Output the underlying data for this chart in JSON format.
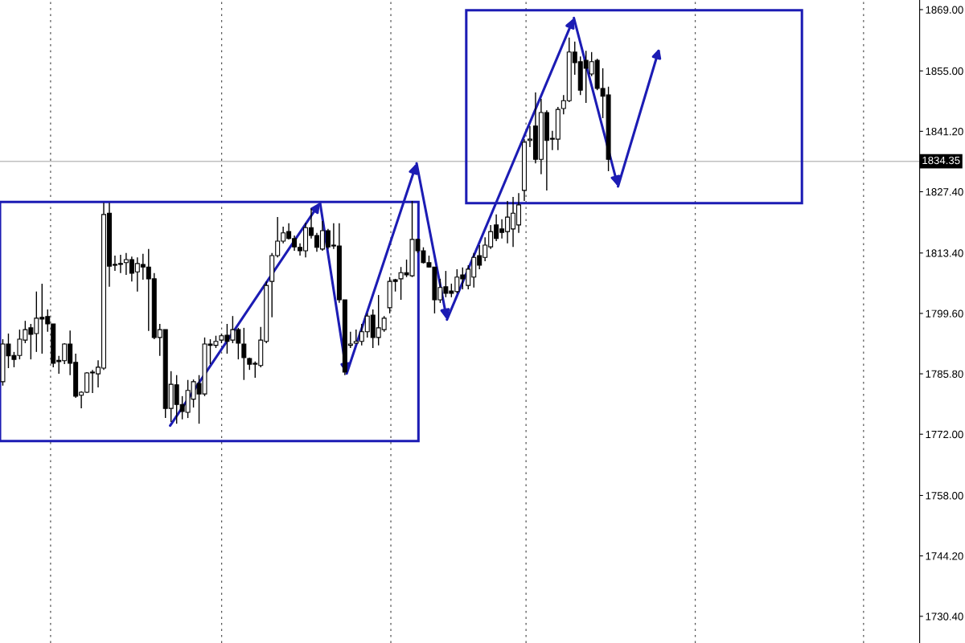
{
  "chart_data": {
    "type": "candlestick",
    "categories": [
      null,
      null,
      null,
      null,
      null,
      null,
      null,
      null,
      null,
      null,
      null,
      null,
      null,
      null,
      null,
      null,
      null,
      null,
      null,
      null,
      null,
      null,
      null,
      null,
      null,
      null,
      null,
      null,
      null,
      null,
      null,
      null,
      null,
      null,
      null,
      null,
      null,
      null,
      null,
      null,
      null,
      null,
      null,
      null,
      null,
      null,
      null,
      null,
      null,
      null,
      null,
      null,
      null,
      null,
      null,
      null,
      null,
      null,
      null,
      null,
      null,
      null,
      null,
      null,
      null,
      null,
      null,
      null,
      null,
      null,
      null,
      null,
      null,
      null,
      null,
      null,
      null,
      null,
      null,
      null,
      null,
      null,
      null,
      null,
      null,
      null,
      null,
      null,
      null,
      null,
      null,
      null,
      null,
      null,
      null,
      null,
      null,
      null,
      null,
      null,
      null,
      null,
      null,
      null,
      null,
      null,
      null,
      null,
      null,
      null,
      null,
      null,
      null,
      null,
      null,
      null,
      null,
      null,
      null,
      null,
      null,
      null,
      null,
      null,
      null,
      null,
      null,
      null,
      null,
      null,
      null,
      null,
      null,
      null,
      null,
      null,
      null,
      null,
      null,
      null,
      null,
      null,
      null,
      null,
      null,
      null,
      null,
      null,
      null,
      null,
      null,
      null,
      null,
      null,
      null,
      null,
      null,
      null,
      null,
      null,
      null,
      null,
      null,
      null
    ],
    "ohlc": [
      [
        1784.0,
        1793.7,
        1783.1,
        1792.6
      ],
      [
        1792.6,
        1795.0,
        1787.1,
        1789.9
      ],
      [
        1790.0,
        1790.8,
        1787.3,
        1789.1
      ],
      [
        1790.0,
        1795.9,
        1789.1,
        1793.7
      ],
      [
        1793.5,
        1797.9,
        1792.8,
        1795.9
      ],
      [
        1796.3,
        1797.2,
        1789.1,
        1794.8
      ],
      [
        1795.0,
        1804.6,
        1790.8,
        1798.5
      ],
      [
        1798.7,
        1806.4,
        1790.4,
        1798.3
      ],
      [
        1798.9,
        1800.5,
        1795.4,
        1797.2
      ],
      [
        1797.2,
        1797.2,
        1787.3,
        1788.2
      ],
      [
        1788.9,
        1789.9,
        1785.8,
        1788.6
      ],
      [
        1788.8,
        1792.8,
        1788.0,
        1792.6
      ],
      [
        1792.6,
        1795.7,
        1785.5,
        1788.2
      ],
      [
        1788.4,
        1790.4,
        1780.3,
        1780.7
      ],
      [
        1780.9,
        1781.8,
        1777.9,
        1781.6
      ],
      [
        1781.6,
        1786.2,
        1781.4,
        1786.0
      ],
      [
        1786.0,
        1786.7,
        1781.4,
        1786.2
      ],
      [
        1785.8,
        1788.9,
        1782.7,
        1787.3
      ],
      [
        1787.1,
        1824.9,
        1786.7,
        1822.2
      ],
      [
        1822.5,
        1824.9,
        1805.7,
        1810.4
      ],
      [
        1810.8,
        1812.8,
        1809.3,
        1810.6
      ],
      [
        1811.0,
        1813.0,
        1808.8,
        1810.8
      ],
      [
        1811.2,
        1813.4,
        1808.4,
        1811.9
      ],
      [
        1811.9,
        1812.6,
        1806.9,
        1808.8
      ],
      [
        1809.1,
        1812.4,
        1804.6,
        1811.0
      ],
      [
        1810.8,
        1813.2,
        1807.3,
        1810.2
      ],
      [
        1810.2,
        1814.3,
        1795.6,
        1807.5
      ],
      [
        1807.5,
        1808.8,
        1793.7,
        1794.1
      ],
      [
        1794.1,
        1797.2,
        1789.9,
        1795.9
      ],
      [
        1795.9,
        1795.9,
        1775.7,
        1777.9
      ],
      [
        1777.9,
        1786.4,
        1774.8,
        1783.4
      ],
      [
        1783.3,
        1785.5,
        1774.4,
        1778.8
      ],
      [
        1778.8,
        1780.7,
        1775.4,
        1777.2
      ],
      [
        1777.0,
        1784.4,
        1775.7,
        1782.0
      ],
      [
        1780.0,
        1784.5,
        1778.1,
        1784.0
      ],
      [
        1783.6,
        1785.5,
        1774.4,
        1781.2
      ],
      [
        1781.2,
        1794.1,
        1780.7,
        1792.6
      ],
      [
        1792.6,
        1793.7,
        1788.0,
        1792.3
      ],
      [
        1792.3,
        1794.5,
        1791.7,
        1793.2
      ],
      [
        1793.5,
        1795.0,
        1792.8,
        1794.5
      ],
      [
        1794.6,
        1797.2,
        1790.4,
        1793.2
      ],
      [
        1793.5,
        1799.0,
        1792.8,
        1795.9
      ],
      [
        1795.9,
        1796.3,
        1789.1,
        1792.8
      ],
      [
        1792.6,
        1796.3,
        1784.4,
        1789.5
      ],
      [
        1789.3,
        1789.5,
        1786.7,
        1788.0
      ],
      [
        1788.2,
        1788.6,
        1784.9,
        1788.0
      ],
      [
        1787.7,
        1796.5,
        1787.3,
        1793.5
      ],
      [
        1793.2,
        1806.9,
        1792.8,
        1806.0
      ],
      [
        1806.9,
        1813.4,
        1798.7,
        1812.8
      ],
      [
        1812.8,
        1821.6,
        1812.4,
        1816.1
      ],
      [
        1816.1,
        1819.4,
        1815.6,
        1818.0
      ],
      [
        1818.3,
        1820.2,
        1816.5,
        1816.7
      ],
      [
        1816.7,
        1817.4,
        1813.9,
        1814.8
      ],
      [
        1814.7,
        1815.6,
        1812.8,
        1813.9
      ],
      [
        1813.9,
        1820.3,
        1812.4,
        1819.2
      ],
      [
        1819.2,
        1823.5,
        1816.7,
        1817.4
      ],
      [
        1817.4,
        1818.0,
        1813.7,
        1814.7
      ],
      [
        1814.3,
        1820.7,
        1813.9,
        1818.5
      ],
      [
        1818.5,
        1818.9,
        1814.3,
        1814.8
      ],
      [
        1815.2,
        1820.2,
        1814.3,
        1815.0
      ],
      [
        1815.0,
        1820.2,
        1802.0,
        1802.7
      ],
      [
        1802.7,
        1802.7,
        1785.5,
        1786.2
      ],
      [
        1792.3,
        1795.4,
        1791.7,
        1792.6
      ],
      [
        1792.8,
        1795.9,
        1792.6,
        1793.2
      ],
      [
        1793.2,
        1797.2,
        1792.3,
        1795.4
      ],
      [
        1795.4,
        1799.6,
        1794.1,
        1799.0
      ],
      [
        1799.2,
        1800.5,
        1791.7,
        1794.1
      ],
      [
        1794.1,
        1803.8,
        1792.3,
        1796.3
      ],
      [
        1795.9,
        1799.0,
        1795.4,
        1798.5
      ],
      [
        1800.9,
        1807.9,
        1799.6,
        1806.9
      ],
      [
        1807.3,
        1807.5,
        1804.6,
        1806.9
      ],
      [
        1807.5,
        1810.2,
        1802.7,
        1808.9
      ],
      [
        1808.9,
        1811.9,
        1807.9,
        1808.4
      ],
      [
        1808.2,
        1825.3,
        1807.9,
        1816.5
      ],
      [
        1816.5,
        1816.7,
        1813.4,
        1813.9
      ],
      [
        1813.9,
        1814.7,
        1811.0,
        1811.2
      ],
      [
        1811.2,
        1812.8,
        1810.1,
        1810.2
      ],
      [
        1810.2,
        1810.2,
        1799.6,
        1802.7
      ],
      [
        1802.7,
        1807.5,
        1802.0,
        1805.5
      ],
      [
        1805.7,
        1809.3,
        1803.3,
        1804.2
      ],
      [
        1804.7,
        1806.4,
        1803.3,
        1804.2
      ],
      [
        1804.6,
        1809.7,
        1804.2,
        1807.9
      ],
      [
        1808.4,
        1810.1,
        1805.1,
        1807.5
      ],
      [
        1806.0,
        1810.6,
        1805.1,
        1809.7
      ],
      [
        1807.9,
        1813.4,
        1805.5,
        1812.4
      ],
      [
        1812.8,
        1815.2,
        1809.7,
        1810.6
      ],
      [
        1812.4,
        1817.0,
        1811.5,
        1815.2
      ],
      [
        1814.8,
        1819.8,
        1814.3,
        1818.3
      ],
      [
        1819.8,
        1822.2,
        1816.1,
        1816.7
      ],
      [
        1818.9,
        1821.1,
        1816.7,
        1818.1
      ],
      [
        1818.3,
        1825.3,
        1815.6,
        1821.6
      ],
      [
        1818.9,
        1826.2,
        1814.8,
        1822.5
      ],
      [
        1819.8,
        1827.1,
        1818.0,
        1824.4
      ],
      [
        1827.7,
        1839.4,
        1825.3,
        1838.7
      ],
      [
        1839.1,
        1842.4,
        1837.6,
        1839.4
      ],
      [
        1842.4,
        1850.1,
        1833.9,
        1834.8
      ],
      [
        1834.8,
        1848.6,
        1831.4,
        1845.5
      ],
      [
        1845.5,
        1846.0,
        1827.7,
        1839.1
      ],
      [
        1839.6,
        1841.3,
        1836.9,
        1839.4
      ],
      [
        1839.4,
        1846.8,
        1836.9,
        1846.2
      ],
      [
        1846.4,
        1849.5,
        1845.1,
        1848.2
      ],
      [
        1848.2,
        1862.6,
        1847.9,
        1859.3
      ],
      [
        1859.3,
        1861.7,
        1854.1,
        1856.9
      ],
      [
        1857.1,
        1858.3,
        1849.5,
        1850.6
      ],
      [
        1857.4,
        1859.6,
        1847.7,
        1855.6
      ],
      [
        1854.3,
        1859.3,
        1853.8,
        1857.1
      ],
      [
        1857.4,
        1857.8,
        1850.6,
        1851.0
      ],
      [
        1851.0,
        1855.6,
        1844.2,
        1849.2
      ],
      [
        1849.5,
        1851.4,
        1832.1,
        1834.8
      ],
      null,
      null,
      null,
      null,
      null,
      null,
      null,
      null,
      null,
      null,
      null,
      null,
      null,
      null,
      null,
      null,
      null,
      null,
      null,
      null,
      null,
      null,
      null,
      null,
      null,
      null,
      null,
      null,
      null,
      null,
      null,
      null,
      null,
      null,
      null,
      null,
      null,
      null,
      null,
      null,
      null,
      null,
      null,
      null,
      null,
      null,
      null,
      null,
      null,
      null,
      null,
      null,
      null,
      null,
      null
    ],
    "ref_lines": [
      {
        "axis": "y",
        "value": 1834.35,
        "label": "1834.35",
        "color": "#c0c0c0"
      }
    ],
    "ylim": [
      1724.3,
      1871.2
    ],
    "yticks": [
      {
        "value": 1869,
        "label": "1869.00"
      },
      {
        "value": 1855,
        "label": "1855.00"
      },
      {
        "value": 1841.2,
        "label": "1841.20"
      },
      {
        "value": 1827.4,
        "label": "1827.40"
      },
      {
        "value": 1813.4,
        "label": "1813.40"
      },
      {
        "value": 1799.6,
        "label": "1799.60"
      },
      {
        "value": 1785.8,
        "label": "1785.80"
      },
      {
        "value": 1772,
        "label": "1772.00"
      },
      {
        "value": 1758,
        "label": "1758.00"
      },
      {
        "value": 1744.2,
        "label": "1744.20"
      },
      {
        "value": 1730.4,
        "label": "1730.40"
      }
    ],
    "tick_labels": "y"
  }
}
